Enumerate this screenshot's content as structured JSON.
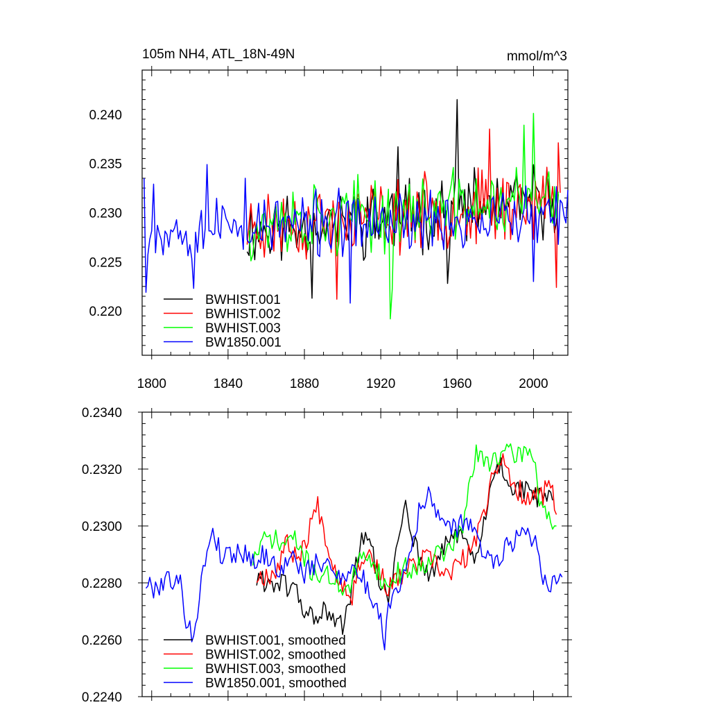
{
  "chart_data": [
    {
      "type": "line",
      "title": "105m NH4, ATL_18N-49N",
      "units": "mmol/m^3",
      "xlim": [
        1795,
        2018
      ],
      "ylim": [
        0.2155,
        0.2445
      ],
      "xticks": [
        1800,
        1840,
        1880,
        1920,
        1960,
        2000
      ],
      "xtick_labels": [
        "1800",
        "1840",
        "1880",
        "1920",
        "1960",
        "2000"
      ],
      "yticks": [
        0.22,
        0.225,
        0.23,
        0.235,
        0.24
      ],
      "ytick_labels": [
        "0.220",
        "0.225",
        "0.230",
        "0.235",
        "0.240"
      ],
      "legend_position": "bottom-left",
      "series": [
        {
          "name": "BWHIST.001",
          "color": "#000000",
          "x_start": 1850,
          "x_end": 2013,
          "mean": 0.2282,
          "trend_end": 0.2312,
          "amp": 0.0032,
          "seed": 11,
          "spikes": [
            [
              1960,
              0.2415
            ],
            [
              1929,
              0.2367
            ],
            [
              1955,
              0.2228
            ],
            [
              1884,
              0.2213
            ]
          ]
        },
        {
          "name": "BWHIST.002",
          "color": "#ff0000",
          "x_start": 1850,
          "x_end": 2014,
          "mean": 0.2285,
          "trend_end": 0.2312,
          "amp": 0.0032,
          "seed": 23,
          "spikes": [
            [
              1977,
              0.2385
            ],
            [
              2013,
              0.2371
            ],
            [
              2012,
              0.2224
            ],
            [
              1897,
              0.2212
            ]
          ]
        },
        {
          "name": "BWHIST.003",
          "color": "#00ff00",
          "x_start": 1851,
          "x_end": 2013,
          "mean": 0.2287,
          "trend_end": 0.2315,
          "amp": 0.0032,
          "seed": 37,
          "spikes": [
            [
              2000,
              0.2401
            ],
            [
              1995,
              0.2389
            ],
            [
              1925,
              0.2192
            ],
            [
              1926,
              0.2222
            ]
          ]
        },
        {
          "name": "BW1850.001",
          "color": "#0000ff",
          "x_start": 1796,
          "x_end": 2018,
          "mean": 0.2283,
          "trend_end": 0.2295,
          "amp": 0.0028,
          "seed": 53,
          "spikes": [
            [
              1796,
              0.2335
            ],
            [
              1797,
              0.2219
            ],
            [
              1801,
              0.2329
            ],
            [
              1822,
              0.2223
            ],
            [
              1829,
              0.2349
            ],
            [
              1849,
              0.2335
            ],
            [
              1904,
              0.2208
            ],
            [
              2000,
              0.223
            ],
            [
              2018,
              0.2323
            ]
          ]
        }
      ]
    },
    {
      "type": "line",
      "title": "",
      "xlim": [
        1795,
        2018
      ],
      "ylim": [
        0.224,
        0.234
      ],
      "yticks": [
        0.224,
        0.226,
        0.228,
        0.23,
        0.232,
        0.234
      ],
      "ytick_labels": [
        "0.2240",
        "0.2260",
        "0.2280",
        "0.2300",
        "0.2320",
        "0.2340"
      ],
      "legend_position": "bottom-left",
      "series": [
        {
          "name": "BWHIST.001, smoothed",
          "color": "#000000",
          "seed": 61,
          "points": [
            [
              1855,
              0.2281
            ],
            [
              1865,
              0.228
            ],
            [
              1875,
              0.2278
            ],
            [
              1880,
              0.227
            ],
            [
              1885,
              0.2268
            ],
            [
              1890,
              0.227
            ],
            [
              1895,
              0.2266
            ],
            [
              1900,
              0.2265
            ],
            [
              1905,
              0.2278
            ],
            [
              1910,
              0.2296
            ],
            [
              1915,
              0.2292
            ],
            [
              1920,
              0.2278
            ],
            [
              1925,
              0.2276
            ],
            [
              1930,
              0.2298
            ],
            [
              1933,
              0.231
            ],
            [
              1935,
              0.23
            ],
            [
              1940,
              0.229
            ],
            [
              1945,
              0.2282
            ],
            [
              1950,
              0.2287
            ],
            [
              1955,
              0.2295
            ],
            [
              1960,
              0.2298
            ],
            [
              1965,
              0.2292
            ],
            [
              1970,
              0.2288
            ],
            [
              1975,
              0.2303
            ],
            [
              1978,
              0.2316
            ],
            [
              1983,
              0.2322
            ],
            [
              1988,
              0.2314
            ],
            [
              1995,
              0.2312
            ],
            [
              2005,
              0.231
            ],
            [
              2010,
              0.2309
            ]
          ]
        },
        {
          "name": "BWHIST.002, smoothed",
          "color": "#ff0000",
          "seed": 67,
          "points": [
            [
              1855,
              0.2282
            ],
            [
              1860,
              0.2283
            ],
            [
              1865,
              0.2284
            ],
            [
              1870,
              0.2294
            ],
            [
              1875,
              0.229
            ],
            [
              1880,
              0.2292
            ],
            [
              1883,
              0.2301
            ],
            [
              1887,
              0.2307
            ],
            [
              1890,
              0.23
            ],
            [
              1895,
              0.2286
            ],
            [
              1900,
              0.228
            ],
            [
              1905,
              0.2276
            ],
            [
              1910,
              0.229
            ],
            [
              1915,
              0.229
            ],
            [
              1920,
              0.2282
            ],
            [
              1925,
              0.2278
            ],
            [
              1930,
              0.2282
            ],
            [
              1935,
              0.2285
            ],
            [
              1940,
              0.2287
            ],
            [
              1945,
              0.2289
            ],
            [
              1950,
              0.2285
            ],
            [
              1955,
              0.2283
            ],
            [
              1960,
              0.2286
            ],
            [
              1965,
              0.2289
            ],
            [
              1970,
              0.2295
            ],
            [
              1975,
              0.2307
            ],
            [
              1978,
              0.2318
            ],
            [
              1983,
              0.2324
            ],
            [
              1988,
              0.2315
            ],
            [
              1995,
              0.2311
            ],
            [
              2005,
              0.2311
            ],
            [
              2009,
              0.2315
            ],
            [
              2012,
              0.2304
            ]
          ]
        },
        {
          "name": "BWHIST.003, smoothed",
          "color": "#00ff00",
          "seed": 71,
          "points": [
            [
              1853,
              0.2288
            ],
            [
              1858,
              0.2294
            ],
            [
              1863,
              0.2296
            ],
            [
              1868,
              0.2293
            ],
            [
              1873,
              0.2296
            ],
            [
              1878,
              0.2292
            ],
            [
              1883,
              0.2285
            ],
            [
              1888,
              0.2283
            ],
            [
              1893,
              0.2282
            ],
            [
              1898,
              0.228
            ],
            [
              1903,
              0.2277
            ],
            [
              1908,
              0.2286
            ],
            [
              1913,
              0.2291
            ],
            [
              1918,
              0.2285
            ],
            [
              1923,
              0.2278
            ],
            [
              1928,
              0.2283
            ],
            [
              1933,
              0.2285
            ],
            [
              1938,
              0.2285
            ],
            [
              1943,
              0.2287
            ],
            [
              1948,
              0.2291
            ],
            [
              1953,
              0.229
            ],
            [
              1958,
              0.2294
            ],
            [
              1963,
              0.2299
            ],
            [
              1967,
              0.2317
            ],
            [
              1970,
              0.2325
            ],
            [
              1975,
              0.2322
            ],
            [
              1980,
              0.2325
            ],
            [
              1985,
              0.2325
            ],
            [
              1990,
              0.2325
            ],
            [
              1995,
              0.2326
            ],
            [
              2000,
              0.2326
            ],
            [
              2003,
              0.231
            ],
            [
              2008,
              0.2303
            ],
            [
              2012,
              0.23
            ]
          ]
        },
        {
          "name": "BW1850.001, smoothed",
          "color": "#0000ff",
          "seed": 79,
          "points": [
            [
              1797,
              0.228
            ],
            [
              1800,
              0.2278
            ],
            [
              1805,
              0.228
            ],
            [
              1810,
              0.2282
            ],
            [
              1815,
              0.2279
            ],
            [
              1818,
              0.2268
            ],
            [
              1821,
              0.2261
            ],
            [
              1824,
              0.227
            ],
            [
              1827,
              0.2284
            ],
            [
              1830,
              0.2295
            ],
            [
              1832,
              0.2299
            ],
            [
              1836,
              0.229
            ],
            [
              1840,
              0.229
            ],
            [
              1845,
              0.2291
            ],
            [
              1850,
              0.229
            ],
            [
              1855,
              0.2288
            ],
            [
              1860,
              0.229
            ],
            [
              1865,
              0.2285
            ],
            [
              1870,
              0.2286
            ],
            [
              1875,
              0.2289
            ],
            [
              1880,
              0.2283
            ],
            [
              1885,
              0.2286
            ],
            [
              1890,
              0.2287
            ],
            [
              1895,
              0.2284
            ],
            [
              1900,
              0.2283
            ],
            [
              1905,
              0.2285
            ],
            [
              1910,
              0.2282
            ],
            [
              1915,
              0.2275
            ],
            [
              1918,
              0.2272
            ],
            [
              1922,
              0.226
            ],
            [
              1925,
              0.2275
            ],
            [
              1930,
              0.228
            ],
            [
              1935,
              0.229
            ],
            [
              1940,
              0.2305
            ],
            [
              1945,
              0.231
            ],
            [
              1950,
              0.2306
            ],
            [
              1955,
              0.2298
            ],
            [
              1960,
              0.23
            ],
            [
              1965,
              0.2303
            ],
            [
              1970,
              0.2295
            ],
            [
              1975,
              0.229
            ],
            [
              1980,
              0.2288
            ],
            [
              1985,
              0.2292
            ],
            [
              1990,
              0.2295
            ],
            [
              1995,
              0.23
            ],
            [
              2000,
              0.2296
            ],
            [
              2003,
              0.2288
            ],
            [
              2006,
              0.2281
            ],
            [
              2010,
              0.228
            ],
            [
              2015,
              0.2282
            ]
          ]
        }
      ]
    }
  ]
}
